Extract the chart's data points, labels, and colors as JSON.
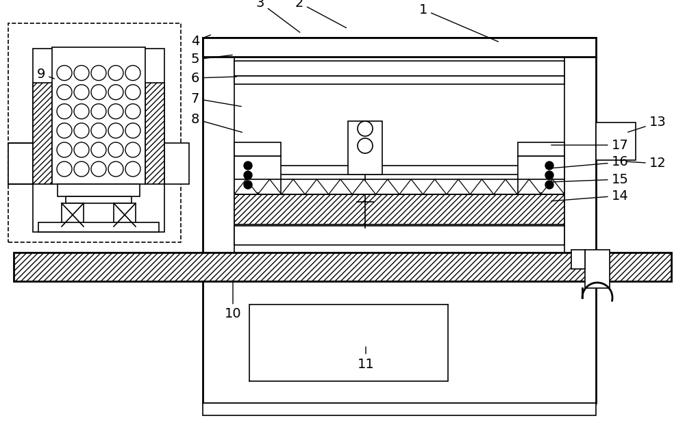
{
  "bg_color": "#ffffff",
  "line_color": "#000000",
  "fig_width": 10.0,
  "fig_height": 6.24,
  "lw": 1.2,
  "lw2": 2.0,
  "label_fs": 14
}
